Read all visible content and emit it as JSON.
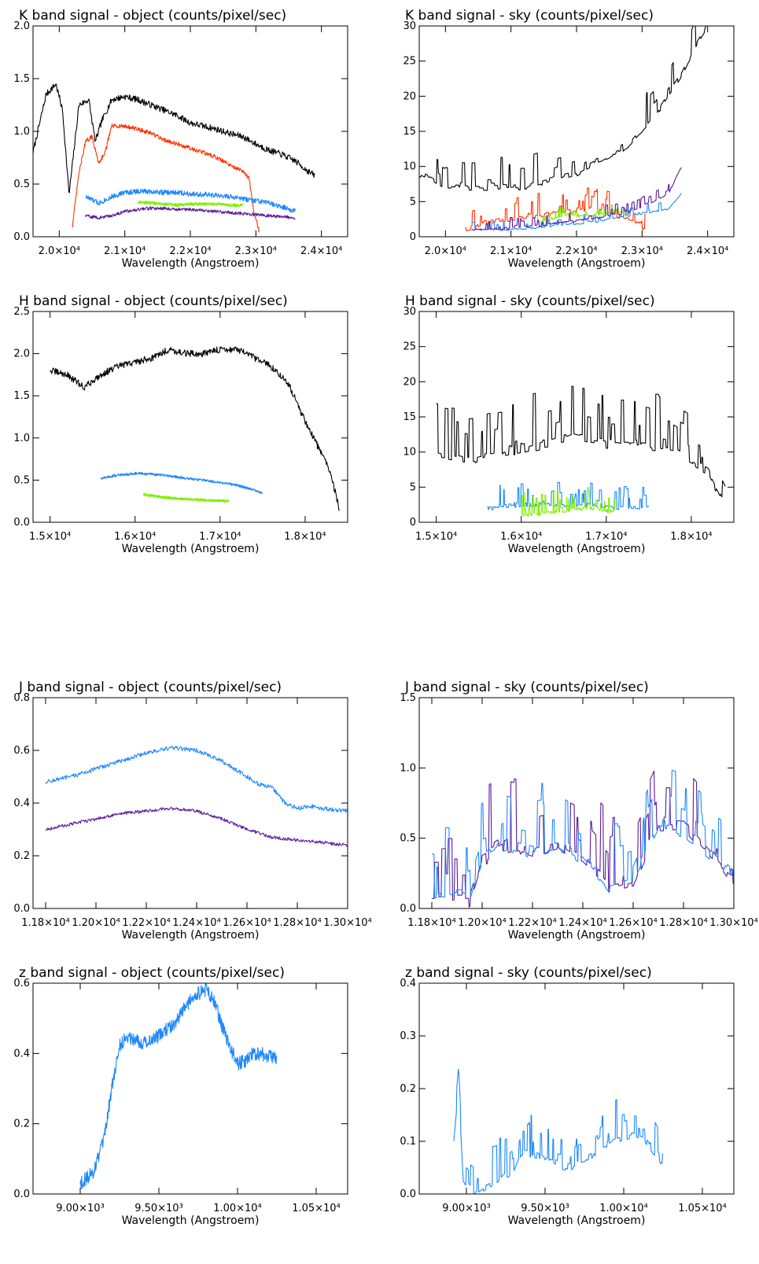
{
  "colors": {
    "black": "#000000",
    "red": "#ff3300",
    "blue": "#1e88ff",
    "green": "#7ff000",
    "purple": "#5b1a9c"
  },
  "chart_data": [
    {
      "id": "k-object",
      "type": "line",
      "title": "K band signal - object (counts/pixel/sec)",
      "xlabel": "Wavelength (Angstroem)",
      "xlim": [
        19600,
        24400
      ],
      "ylim": [
        0,
        2.0
      ],
      "xticks": [
        20000,
        21000,
        22000,
        23000,
        24000
      ],
      "xtick_labels": [
        "2.0×10⁴",
        "2.1×10⁴",
        "2.2×10⁴",
        "2.3×10⁴",
        "2.4×10⁴"
      ],
      "yticks": [
        0,
        0.5,
        1.0,
        1.5,
        2.0
      ],
      "ytick_labels": [
        "0.0",
        "0.5",
        "1.0",
        "1.5",
        "2.0"
      ],
      "series": [
        {
          "color": "black",
          "noise": 0.03,
          "x": [
            19600,
            19800,
            19950,
            20050,
            20150,
            20300,
            20450,
            20550,
            20650,
            20800,
            21000,
            21200,
            21400,
            21600,
            21800,
            22000,
            22200,
            22400,
            22600,
            22800,
            23000,
            23200,
            23400,
            23600,
            23800,
            23900
          ],
          "y": [
            0.8,
            1.35,
            1.45,
            1.2,
            0.4,
            1.25,
            1.3,
            0.9,
            1.1,
            1.3,
            1.33,
            1.3,
            1.25,
            1.2,
            1.15,
            1.08,
            1.05,
            1.02,
            0.98,
            0.95,
            0.88,
            0.82,
            0.78,
            0.72,
            0.62,
            0.58
          ]
        },
        {
          "color": "red",
          "noise": 0.02,
          "x": [
            20200,
            20300,
            20400,
            20500,
            20600,
            20700,
            20800,
            21000,
            21200,
            21400,
            21600,
            21800,
            22000,
            22200,
            22400,
            22600,
            22800,
            22900,
            22950,
            23050
          ],
          "y": [
            0.1,
            0.6,
            0.9,
            0.95,
            0.7,
            0.8,
            1.05,
            1.05,
            1.02,
            0.98,
            0.92,
            0.88,
            0.84,
            0.8,
            0.75,
            0.68,
            0.62,
            0.55,
            0.3,
            0.05
          ]
        },
        {
          "color": "blue",
          "noise": 0.025,
          "x": [
            20400,
            20600,
            20800,
            21000,
            21200,
            21400,
            21600,
            21800,
            22000,
            22200,
            22400,
            22600,
            22800,
            23000,
            23200,
            23400,
            23600
          ],
          "y": [
            0.38,
            0.32,
            0.38,
            0.42,
            0.43,
            0.43,
            0.42,
            0.42,
            0.41,
            0.4,
            0.39,
            0.38,
            0.36,
            0.34,
            0.32,
            0.28,
            0.25
          ]
        },
        {
          "color": "green",
          "noise": 0.015,
          "x": [
            21200,
            21400,
            21600,
            21800,
            22000,
            22200,
            22400,
            22600,
            22800
          ],
          "y": [
            0.33,
            0.32,
            0.31,
            0.3,
            0.31,
            0.31,
            0.31,
            0.3,
            0.3
          ]
        },
        {
          "color": "purple",
          "noise": 0.015,
          "x": [
            20400,
            20600,
            20800,
            21000,
            21200,
            21400,
            21600,
            21800,
            22000,
            22200,
            22400,
            22600,
            22800,
            23000,
            23200,
            23400,
            23600
          ],
          "y": [
            0.2,
            0.18,
            0.2,
            0.24,
            0.26,
            0.27,
            0.27,
            0.26,
            0.26,
            0.25,
            0.24,
            0.23,
            0.22,
            0.21,
            0.2,
            0.19,
            0.18
          ]
        }
      ]
    },
    {
      "id": "k-sky",
      "type": "line",
      "title": "K band signal - sky (counts/pixel/sec)",
      "xlabel": "Wavelength (Angstroem)",
      "xlim": [
        19600,
        24400
      ],
      "ylim": [
        0,
        30
      ],
      "xticks": [
        20000,
        21000,
        22000,
        23000,
        24000
      ],
      "xtick_labels": [
        "2.0×10⁴",
        "2.1×10⁴",
        "2.2×10⁴",
        "2.3×10⁴",
        "2.4×10⁴"
      ],
      "yticks": [
        0,
        5,
        10,
        15,
        20,
        25,
        30
      ],
      "ytick_labels": [
        "0",
        "5",
        "10",
        "15",
        "20",
        "25",
        "30"
      ],
      "series": [
        {
          "color": "black",
          "spiky": true,
          "noise": 3.0,
          "x": [
            19600,
            20000,
            20400,
            20800,
            21200,
            21600,
            22000,
            22400,
            22800,
            23000,
            23200,
            23400,
            23600,
            23800,
            24000
          ],
          "y": [
            9,
            7,
            7,
            7,
            7,
            8,
            9,
            11,
            13,
            15,
            17,
            20,
            23,
            27,
            30
          ]
        },
        {
          "color": "red",
          "spiky": true,
          "noise": 2.0,
          "x": [
            20300,
            20600,
            21000,
            21400,
            21800,
            22200,
            22600,
            22900,
            23050
          ],
          "y": [
            1,
            2,
            2.5,
            3,
            3.5,
            4,
            3,
            2,
            1
          ]
        },
        {
          "color": "blue",
          "spiky": true,
          "noise": 0.8,
          "x": [
            20400,
            21000,
            21600,
            22200,
            22800,
            23400,
            23600
          ],
          "y": [
            1,
            1,
            1.5,
            2,
            3,
            4,
            6
          ]
        },
        {
          "color": "green",
          "spiky": true,
          "noise": 0.8,
          "x": [
            21400,
            21800,
            22200,
            22600,
            22800
          ],
          "y": [
            2,
            3,
            3,
            3.5,
            3.5
          ]
        },
        {
          "color": "purple",
          "spiky": true,
          "noise": 1.0,
          "x": [
            20400,
            21000,
            21600,
            22200,
            22800,
            23400,
            23600
          ],
          "y": [
            1,
            1.2,
            1.8,
            2.5,
            3.5,
            6,
            10
          ]
        }
      ]
    },
    {
      "id": "h-object",
      "type": "line",
      "title": "H band signal - object (counts/pixel/sec)",
      "xlabel": "Wavelength (Angstroem)",
      "xlim": [
        14800,
        18500
      ],
      "ylim": [
        0,
        2.5
      ],
      "xticks": [
        15000,
        16000,
        17000,
        18000
      ],
      "xtick_labels": [
        "1.5×10⁴",
        "1.6×10⁴",
        "1.7×10⁴",
        "1.8×10⁴"
      ],
      "yticks": [
        0,
        0.5,
        1.0,
        1.5,
        2.0,
        2.5
      ],
      "ytick_labels": [
        "0.0",
        "0.5",
        "1.0",
        "1.5",
        "2.0",
        "2.5"
      ],
      "series": [
        {
          "color": "black",
          "noise": 0.04,
          "x": [
            15000,
            15200,
            15400,
            15600,
            15800,
            16000,
            16200,
            16400,
            16600,
            16800,
            17000,
            17200,
            17400,
            17600,
            17800,
            18000,
            18200,
            18300,
            18400
          ],
          "y": [
            1.8,
            1.75,
            1.6,
            1.75,
            1.85,
            1.9,
            1.95,
            2.05,
            2.0,
            2.0,
            2.05,
            2.05,
            1.95,
            1.85,
            1.65,
            1.2,
            0.8,
            0.6,
            0.15
          ]
        },
        {
          "color": "blue",
          "noise": 0.015,
          "x": [
            15600,
            15800,
            16000,
            16200,
            16400,
            16600,
            16800,
            17000,
            17200,
            17400,
            17500
          ],
          "y": [
            0.52,
            0.56,
            0.58,
            0.57,
            0.55,
            0.52,
            0.5,
            0.47,
            0.44,
            0.38,
            0.34
          ]
        },
        {
          "color": "green",
          "noise": 0.015,
          "x": [
            16100,
            16300,
            16500,
            16700,
            16900,
            17100
          ],
          "y": [
            0.33,
            0.3,
            0.28,
            0.27,
            0.26,
            0.25
          ]
        }
      ]
    },
    {
      "id": "h-sky",
      "type": "line",
      "title": "H band signal - sky (counts/pixel/sec)",
      "xlabel": "Wavelength (Angstroem)",
      "xlim": [
        14800,
        18500
      ],
      "ylim": [
        0,
        30
      ],
      "xticks": [
        15000,
        16000,
        17000,
        18000
      ],
      "xtick_labels": [
        "1.5×10⁴",
        "1.6×10⁴",
        "1.7×10⁴",
        "1.8×10⁴"
      ],
      "yticks": [
        0,
        5,
        10,
        15,
        20,
        25,
        30
      ],
      "ytick_labels": [
        "0",
        "5",
        "10",
        "15",
        "20",
        "25",
        "30"
      ],
      "series": [
        {
          "color": "black",
          "spiky": true,
          "noise": 5.0,
          "x": [
            15000,
            15400,
            15800,
            16200,
            16600,
            17000,
            17400,
            17800,
            18200,
            18400
          ],
          "y": [
            10,
            9,
            10,
            11,
            12,
            11,
            11,
            10,
            7,
            2
          ]
        },
        {
          "color": "blue",
          "spiky": true,
          "noise": 2.0,
          "x": [
            15600,
            16000,
            16400,
            16800,
            17200,
            17500
          ],
          "y": [
            2,
            2.5,
            2.5,
            2.5,
            2,
            2
          ]
        },
        {
          "color": "green",
          "spiky": true,
          "noise": 2.0,
          "x": [
            16000,
            16400,
            16800,
            17100
          ],
          "y": [
            1,
            1.5,
            2,
            1.5
          ]
        }
      ]
    },
    {
      "id": "j-object",
      "type": "line",
      "title": "J band signal - object (counts/pixel/sec)",
      "xlabel": "Wavelength (Angstroem)",
      "xlim": [
        11750,
        13000
      ],
      "ylim": [
        0,
        0.8
      ],
      "xticks": [
        11800,
        12000,
        12200,
        12400,
        12600,
        12800,
        13000
      ],
      "xtick_labels": [
        "1.18×10⁴",
        "1.20×10⁴",
        "1.22×10⁴",
        "1.24×10⁴",
        "1.26×10⁴",
        "1.28×10⁴",
        "1.30×10⁴"
      ],
      "yticks": [
        0,
        0.2,
        0.4,
        0.6,
        0.8
      ],
      "ytick_labels": [
        "0.0",
        "0.2",
        "0.4",
        "0.6",
        "0.8"
      ],
      "series": [
        {
          "color": "blue",
          "noise": 0.008,
          "x": [
            11800,
            11900,
            12000,
            12100,
            12200,
            12300,
            12400,
            12500,
            12600,
            12650,
            12700,
            12750,
            12800,
            12850,
            12900,
            13000
          ],
          "y": [
            0.48,
            0.5,
            0.53,
            0.56,
            0.59,
            0.61,
            0.6,
            0.56,
            0.5,
            0.47,
            0.46,
            0.4,
            0.38,
            0.39,
            0.38,
            0.37
          ]
        },
        {
          "color": "purple",
          "noise": 0.006,
          "x": [
            11800,
            11900,
            12000,
            12100,
            12200,
            12300,
            12400,
            12500,
            12600,
            12700,
            12800,
            12900,
            13000
          ],
          "y": [
            0.3,
            0.32,
            0.34,
            0.36,
            0.37,
            0.38,
            0.37,
            0.34,
            0.3,
            0.27,
            0.26,
            0.25,
            0.24
          ]
        }
      ]
    },
    {
      "id": "j-sky",
      "type": "line",
      "title": "J band signal - sky (counts/pixel/sec)",
      "xlabel": "Wavelength (Angstroem)",
      "xlim": [
        11750,
        13000
      ],
      "ylim": [
        0,
        1.5
      ],
      "xticks": [
        11800,
        12000,
        12200,
        12400,
        12600,
        12800,
        13000
      ],
      "xtick_labels": [
        "1.18×10⁴",
        "1.20×10⁴",
        "1.22×10⁴",
        "1.24×10⁴",
        "1.26×10⁴",
        "1.28×10⁴",
        "1.30×10⁴"
      ],
      "yticks": [
        0,
        0.5,
        1.0,
        1.5
      ],
      "ytick_labels": [
        "0.0",
        "0.5",
        "1.0",
        "1.5"
      ],
      "series": [
        {
          "color": "purple",
          "spiky": true,
          "noise": 0.35,
          "x": [
            11800,
            11950,
            12000,
            12100,
            12200,
            12300,
            12400,
            12500,
            12600,
            12700,
            12800,
            12900,
            13000
          ],
          "y": [
            0.05,
            0.06,
            0.35,
            0.45,
            0.4,
            0.45,
            0.35,
            0.15,
            0.2,
            0.6,
            0.6,
            0.4,
            0.2
          ]
        },
        {
          "color": "blue",
          "spiky": true,
          "noise": 0.3,
          "x": [
            11800,
            11950,
            12000,
            12100,
            12200,
            12300,
            12400,
            12500,
            12600,
            12700,
            12800,
            12900,
            13000
          ],
          "y": [
            0.1,
            0.1,
            0.35,
            0.45,
            0.4,
            0.45,
            0.35,
            0.15,
            0.2,
            0.6,
            0.55,
            0.4,
            0.25
          ]
        }
      ]
    },
    {
      "id": "z-object",
      "type": "line",
      "title": "z band signal - object (counts/pixel/sec)",
      "xlabel": "Wavelength (Angstroem)",
      "xlim": [
        8700,
        10700
      ],
      "ylim": [
        0,
        0.6
      ],
      "xticks": [
        9000,
        9500,
        10000,
        10500
      ],
      "xtick_labels": [
        "9.00×10³",
        "9.50×10³",
        "1.00×10⁴",
        "1.05×10⁴"
      ],
      "yticks": [
        0,
        0.2,
        0.4,
        0.6
      ],
      "ytick_labels": [
        "0.0",
        "0.2",
        "0.4",
        "0.6"
      ],
      "series": [
        {
          "color": "blue",
          "noise": 0.02,
          "x": [
            9000,
            9080,
            9150,
            9200,
            9250,
            9300,
            9350,
            9400,
            9450,
            9500,
            9550,
            9600,
            9650,
            9700,
            9750,
            9800,
            9850,
            9900,
            9950,
            10000,
            10050,
            10100,
            10150,
            10200,
            10250
          ],
          "y": [
            0.03,
            0.06,
            0.15,
            0.3,
            0.42,
            0.45,
            0.44,
            0.43,
            0.44,
            0.45,
            0.47,
            0.48,
            0.52,
            0.55,
            0.57,
            0.58,
            0.55,
            0.48,
            0.42,
            0.37,
            0.38,
            0.4,
            0.4,
            0.39,
            0.39
          ]
        }
      ]
    },
    {
      "id": "z-sky",
      "type": "line",
      "title": "z band signal - sky (counts/pixel/sec)",
      "xlabel": "Wavelength (Angstroem)",
      "xlim": [
        8700,
        10700
      ],
      "ylim": [
        0,
        0.4
      ],
      "xticks": [
        9000,
        9500,
        10000,
        10500
      ],
      "xtick_labels": [
        "9.00×10³",
        "9.50×10³",
        "1.00×10⁴",
        "1.05×10⁴"
      ],
      "yticks": [
        0,
        0.1,
        0.2,
        0.3,
        0.4
      ],
      "ytick_labels": [
        "0.0",
        "0.1",
        "0.2",
        "0.3",
        "0.4"
      ],
      "series": [
        {
          "color": "blue",
          "spiky": true,
          "noise": 0.05,
          "x": [
            8920,
            8950,
            8980,
            9050,
            9150,
            9300,
            9350,
            9450,
            9550,
            9650,
            9750,
            9850,
            9950,
            10050,
            10150,
            10250
          ],
          "y": [
            0.1,
            0.2,
            0.02,
            0.0,
            0.02,
            0.04,
            0.08,
            0.07,
            0.06,
            0.05,
            0.06,
            0.09,
            0.1,
            0.11,
            0.1,
            0.05
          ]
        }
      ]
    }
  ]
}
